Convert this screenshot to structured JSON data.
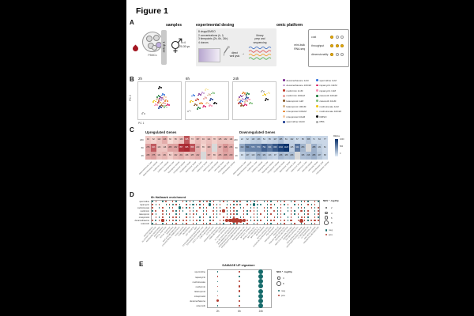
{
  "figure_title": "Figure 1",
  "panel_a": {
    "label": "A",
    "headers": {
      "samples": "samples",
      "design": "experimental desing",
      "omic": "omic platform"
    },
    "pbmcs_label": "PBMCs",
    "setup_label": "setup 1",
    "samples_n": "n=4",
    "samples_age": "20-30 yo",
    "design_bullets": [
      "8 drugs/DMSO",
      "2 concentrations (h, l)",
      "3 timepoints (2h, 6h, 24h)",
      "4 donors"
    ],
    "lysis_lines": [
      "direct",
      "well lysis"
    ],
    "arrow": "→",
    "library_lines": [
      "library",
      "prep and",
      "sequencing"
    ],
    "read_colors": [
      "#4472c4",
      "#e05252",
      "#f0a030",
      "#4caf50"
    ],
    "omic_lines": [
      "mini-bulk",
      "RNA-seq"
    ],
    "score_color": "#f3b700",
    "scores": [
      {
        "name": "cost",
        "filled": 1,
        "total": 3
      },
      {
        "name": "throughput",
        "filled": 3,
        "total": 3
      },
      {
        "name": "dimensionality",
        "filled": 1,
        "total": 3
      }
    ]
  },
  "panel_b": {
    "label": "B",
    "xlabel": "PC 1",
    "ylabel": "PC 2",
    "legend": [
      {
        "label": "dexamethasone 1uM",
        "color": "#7b2a8f"
      },
      {
        "label": "dexamethasone 100nM",
        "color": "#c49ad1"
      },
      {
        "label": "metformin 1mM",
        "color": "#c0392b"
      },
      {
        "label": "metformin 100uM",
        "color": "#e8a09a"
      },
      {
        "label": "latanoprost 1uM",
        "color": "#8a5a2b"
      },
      {
        "label": "latanoprost 100nM",
        "color": "#d2b48c"
      },
      {
        "label": "misoprostol 100uM",
        "color": "#e67e22"
      },
      {
        "label": "misoprostol 10uM",
        "color": "#f5cba7"
      },
      {
        "label": "spermidine 10uM",
        "color": "#1a3a8f"
      },
      {
        "label": "spermidine 1uM",
        "color": "#2e6fdb"
      },
      {
        "label": "rapamycin 10nM",
        "color": "#d81b60"
      },
      {
        "label": "rapamycin 1nM",
        "color": "#f48fb1"
      },
      {
        "label": "celecoxib 100uM",
        "color": "#1b7837"
      },
      {
        "label": "celecoxib 10uM",
        "color": "#7fbf7b"
      },
      {
        "label": "methotrexate 1uM",
        "color": "#f1c40f"
      },
      {
        "label": "methotrexate 100nM",
        "color": "#f9e79f"
      },
      {
        "label": "DMSO",
        "color": "#111111"
      },
      {
        "label": "PBS",
        "color": "#aaaaaa"
      }
    ],
    "facets": [
      {
        "label": "2h",
        "points": [
          [
            0.52,
            0.4
          ],
          [
            0.56,
            0.45
          ],
          [
            0.48,
            0.52
          ],
          [
            0.6,
            0.55
          ],
          [
            0.55,
            0.62
          ],
          [
            0.44,
            0.44
          ],
          [
            0.66,
            0.48
          ],
          [
            0.62,
            0.38
          ],
          [
            0.5,
            0.68
          ],
          [
            0.58,
            0.3
          ],
          [
            0.7,
            0.6
          ],
          [
            0.4,
            0.6
          ],
          [
            0.47,
            0.35
          ],
          [
            0.64,
            0.66
          ],
          [
            0.36,
            0.5
          ],
          [
            0.53,
            0.55
          ],
          [
            0.5,
            0.1
          ],
          [
            0.08,
            0.85
          ]
        ]
      },
      {
        "label": "6h",
        "points": [
          [
            0.3,
            0.3
          ],
          [
            0.38,
            0.25
          ],
          [
            0.25,
            0.45
          ],
          [
            0.45,
            0.4
          ],
          [
            0.2,
            0.6
          ],
          [
            0.55,
            0.3
          ],
          [
            0.35,
            0.55
          ],
          [
            0.5,
            0.55
          ],
          [
            0.6,
            0.45
          ],
          [
            0.15,
            0.32
          ],
          [
            0.42,
            0.65
          ],
          [
            0.58,
            0.62
          ],
          [
            0.28,
            0.7
          ],
          [
            0.65,
            0.25
          ],
          [
            0.1,
            0.5
          ],
          [
            0.48,
            0.15
          ],
          [
            0.7,
            0.55
          ],
          [
            0.05,
            0.78
          ]
        ]
      },
      {
        "label": "24h",
        "points": [
          [
            0.15,
            0.35
          ],
          [
            0.2,
            0.45
          ],
          [
            0.12,
            0.55
          ],
          [
            0.25,
            0.3
          ],
          [
            0.18,
            0.62
          ],
          [
            0.28,
            0.5
          ],
          [
            0.22,
            0.25
          ],
          [
            0.1,
            0.45
          ],
          [
            0.3,
            0.4
          ],
          [
            0.16,
            0.5
          ],
          [
            0.26,
            0.6
          ],
          [
            0.35,
            0.45
          ],
          [
            0.32,
            0.28
          ],
          [
            0.4,
            0.55
          ],
          [
            0.75,
            0.3
          ],
          [
            0.85,
            0.25
          ],
          [
            0.8,
            0.45
          ],
          [
            0.7,
            0.2
          ]
        ]
      }
    ]
  },
  "panel_c": {
    "label": "C",
    "up_title": "Upregulated Genes",
    "down_title": "Downregulated Genes",
    "rows": [
      "24h",
      "6h",
      "2h"
    ],
    "categories": [
      "dexamethasone 1uM",
      "dexamethasone 100nM",
      "metformin 1mM",
      "metformin 100uM",
      "latanoprost 1uM",
      "latanoprost 100nM",
      "misoprostol 100uM",
      "misoprostol 10uM",
      "spermidine 10uM",
      "spermidine 1uM",
      "rapamycin 10nM",
      "rapamycin 1nM",
      "celecoxib 100uM",
      "celecoxib 10uM",
      "methotrexate 1uM",
      "methotrexate 100nM"
    ],
    "up_values": [
      [
        94,
        62,
        122,
        218,
        30,
        85,
        130,
        645,
        73,
        157,
        94,
        141,
        78,
        135,
        132,
        118
      ],
      [
        276,
        623,
        123,
        116,
        265,
        262,
        857,
        905,
        658,
        210,
        65,
        180,
        null,
        197,
        318,
        215
      ],
      [
        238,
        275,
        141,
        181,
        84,
        162,
        201,
        138,
        185,
        222,
        null,
        167,
        89,
        205,
        268,
        230
      ]
    ],
    "down_values": [
      [
        22,
        62,
        115,
        133,
        54,
        85,
        107,
        185,
        81,
        102,
        67,
        85,
        158,
        71,
        84,
        77
      ],
      [
        310,
        541,
        573,
        570,
        794,
        644,
        849,
        1012,
        1123,
        125,
        644,
        253,
        null,
        288,
        131,
        81
      ],
      [
        49,
        167,
        120,
        270,
        184,
        123,
        97,
        238,
        188,
        208,
        null,
        195,
        218,
        288,
        167,
        88
      ]
    ],
    "up_scale": [
      "#fdeae3",
      "#99000d"
    ],
    "down_scale": [
      "#e3edf7",
      "#08306b"
    ],
    "na_color": "#d8d8d8",
    "scale_max": 1150,
    "colorbar": {
      "label": "DEGs",
      "ticks": [
        "1000",
        "500",
        "0"
      ]
    }
  },
  "panel_d": {
    "label": "D",
    "title": "6h Hallmark enrichment",
    "rows": [
      "spermidine",
      "rapamycin",
      "methotrexate",
      "metformin",
      "latanoprost",
      "misoprostol",
      "dexamethasone",
      "celecoxib"
    ],
    "categories": [
      "ADIPOGENESIS",
      "ALLOGRAFT REJECTION",
      "ANDROGEN RESPONSE",
      "ANGIOGENESIS",
      "APICAL JUNCTION",
      "APICAL SURFACE",
      "APOPTOSIS",
      "BILE ACID METABOLISM",
      "CHOLESTEROL HOMEOSTASIS",
      "COAGULATION",
      "COMPLEMENT",
      "DNA REPAIR",
      "E2F TARGETS",
      "EMT",
      "ESTROGEN RESPONSE EARLY",
      "ESTROGEN RESPONSE LATE",
      "FATTY ACID METABOLISM",
      "G2M CHECKPOINT",
      "GLYCOLYSIS",
      "HEDGEHOG SIGNALING",
      "HEME METABOLISM",
      "HYPOXIA",
      "IL2 STAT5 SIGNALING",
      "IL6 JAK STAT3 SIGNALING",
      "INFLAMMATORY RESPONSE",
      "INTERFERON ALPHA RESPONSE",
      "INTERFERON GAMMA RESPONSE",
      "KRAS SIGNALING DN",
      "KRAS SIGNALING UP",
      "MITOTIC SPINDLE",
      "MTORC1 SIGNALING",
      "MYC TARGETS V1",
      "MYC TARGETS V2",
      "MYOGENESIS",
      "NOTCH SIGNALING",
      "OXIDATIVE PHOSPHORYLATION",
      "P53 PATHWAY",
      "PANCREAS BETA CELLS",
      "PEROXISOME",
      "PI3K AKT MTOR SIGNALING",
      "PROTEIN SECRETION",
      "REACTIVE OXYGEN SPECIES",
      "SPERMATOGENESIS",
      "TGF BETA SIGNALING",
      "TNFA SIGNALING VIA NFKB",
      "UNFOLDED PROTEIN RESPONSE",
      "UV RESPONSE DN",
      "UV RESPONSE UP",
      "WNT BETA CATENIN",
      "XENOBIOTIC METABOLISM"
    ],
    "values": [
      [
        -1,
        1,
        0,
        -1,
        2,
        0,
        1,
        -1,
        0,
        1,
        -2,
        1,
        -1,
        0,
        1,
        -1,
        2,
        -1,
        1,
        0,
        -1,
        1,
        -1,
        0,
        1,
        -1,
        2,
        0,
        -1,
        1,
        -2,
        1,
        0,
        -1,
        1,
        -1,
        0,
        1,
        -1,
        2,
        0,
        -1,
        1,
        0,
        -1,
        1,
        -1,
        0,
        1,
        -1
      ],
      [
        1,
        -1,
        1,
        0,
        -1,
        1,
        -2,
        1,
        -1,
        0,
        1,
        -1,
        -3,
        1,
        -1,
        1,
        0,
        -4,
        1,
        -1,
        1,
        0,
        -1,
        1,
        -1,
        2,
        -2,
        0,
        1,
        -1,
        -4,
        -3,
        -2,
        0,
        -1,
        2,
        -1,
        0,
        1,
        -1,
        1,
        0,
        -1,
        1,
        -1,
        0,
        1,
        -1,
        1,
        0
      ],
      [
        1,
        0,
        -1,
        1,
        0,
        -1,
        1,
        0,
        -4,
        1,
        -1,
        2,
        -1,
        0,
        1,
        -1,
        1,
        0,
        -1,
        1,
        -1,
        0,
        2,
        -1,
        1,
        0,
        -1,
        1,
        0,
        -1,
        1,
        -1,
        0,
        1,
        -1,
        1,
        0,
        -1,
        1,
        0,
        -1,
        1,
        0,
        -1,
        1,
        -1,
        0,
        1,
        -1,
        1
      ],
      [
        -1,
        2,
        0,
        1,
        -1,
        0,
        3,
        -1,
        1,
        -1,
        0,
        1,
        -1,
        2,
        0,
        -1,
        1,
        0,
        3,
        -1,
        2,
        4,
        -1,
        1,
        2,
        -1,
        0,
        1,
        -1,
        2,
        1,
        -1,
        0,
        1,
        -1,
        0,
        2,
        -1,
        1,
        0,
        -1,
        1,
        -1,
        0,
        3,
        -1,
        1,
        0,
        -1,
        1
      ],
      [
        1,
        -1,
        0,
        2,
        -1,
        1,
        0,
        -1,
        1,
        0,
        -1,
        1,
        2,
        -1,
        0,
        1,
        -1,
        0,
        1,
        -1,
        1,
        0,
        -1,
        2,
        1,
        -1,
        0,
        1,
        -1,
        0,
        1,
        -1,
        1,
        0,
        -1,
        1,
        0,
        -1,
        1,
        -1,
        0,
        1,
        -1,
        1,
        0,
        -1,
        1,
        0,
        -1,
        1
      ],
      [
        0,
        1,
        -1,
        1,
        0,
        -1,
        2,
        1,
        -1,
        0,
        1,
        -1,
        1,
        0,
        -1,
        1,
        0,
        -1,
        1,
        -1,
        0,
        2,
        1,
        -1,
        1,
        0,
        -1,
        1,
        0,
        -1,
        1,
        -1,
        0,
        1,
        -1,
        0,
        1,
        -1,
        1,
        0,
        -1,
        1,
        0,
        -1,
        2,
        1,
        -1,
        0,
        1,
        -1
      ],
      [
        2,
        -2,
        1,
        4,
        -1,
        1,
        3,
        -1,
        1,
        2,
        3,
        -1,
        1,
        2,
        -1,
        1,
        0,
        -1,
        2,
        0,
        1,
        3,
        5,
        6,
        8,
        8,
        7,
        6,
        3,
        -1,
        2,
        -2,
        1,
        0,
        -1,
        1,
        2,
        0,
        1,
        2,
        -1,
        3,
        0,
        1,
        7,
        1,
        -1,
        2,
        3,
        1
      ],
      [
        -1,
        1,
        0,
        -1,
        1,
        0,
        -1,
        2,
        0,
        -1,
        1,
        0,
        1,
        -1,
        0,
        1,
        -1,
        1,
        0,
        -1,
        1,
        -1,
        0,
        1,
        -1,
        1,
        0,
        -1,
        1,
        0,
        -1,
        1,
        0,
        -1,
        1,
        -1,
        0,
        1,
        -1,
        1,
        0,
        -1,
        1,
        0,
        -1,
        1,
        0,
        -1,
        1,
        0
      ]
    ],
    "legend": {
      "size_title": "NES * -log10p",
      "sizes": [
        "2",
        "4",
        "6",
        "8"
      ],
      "neg_label": "neg",
      "pos_label": "pos",
      "neg_color": "#166b6b",
      "pos_color": "#b03a2e"
    }
  },
  "panel_e": {
    "label": "E",
    "title": "DAMAGE UP signature",
    "rows": [
      "spermidine",
      "rapamycin",
      "methotrexate",
      "metformin",
      "latanoprost",
      "misoprostol",
      "dexamethasone",
      "celecoxib"
    ],
    "categories": [
      "2h",
      "6h",
      "24h"
    ],
    "values": [
      [
        -1,
        1,
        -8
      ],
      [
        1,
        -1,
        -8
      ],
      [
        -1,
        2,
        -8
      ],
      [
        1,
        3,
        -8
      ],
      [
        -1,
        3,
        -8
      ],
      [
        1,
        -2,
        -8
      ],
      [
        3,
        1,
        -8
      ],
      [
        -1,
        1,
        -8
      ]
    ],
    "legend": {
      "size_title": "NES * -log10p",
      "sizes": [
        "4",
        "8"
      ],
      "neg_label": "neg",
      "pos_label": "pos",
      "neg_color": "#166b6b",
      "pos_color": "#b03a2e"
    }
  }
}
